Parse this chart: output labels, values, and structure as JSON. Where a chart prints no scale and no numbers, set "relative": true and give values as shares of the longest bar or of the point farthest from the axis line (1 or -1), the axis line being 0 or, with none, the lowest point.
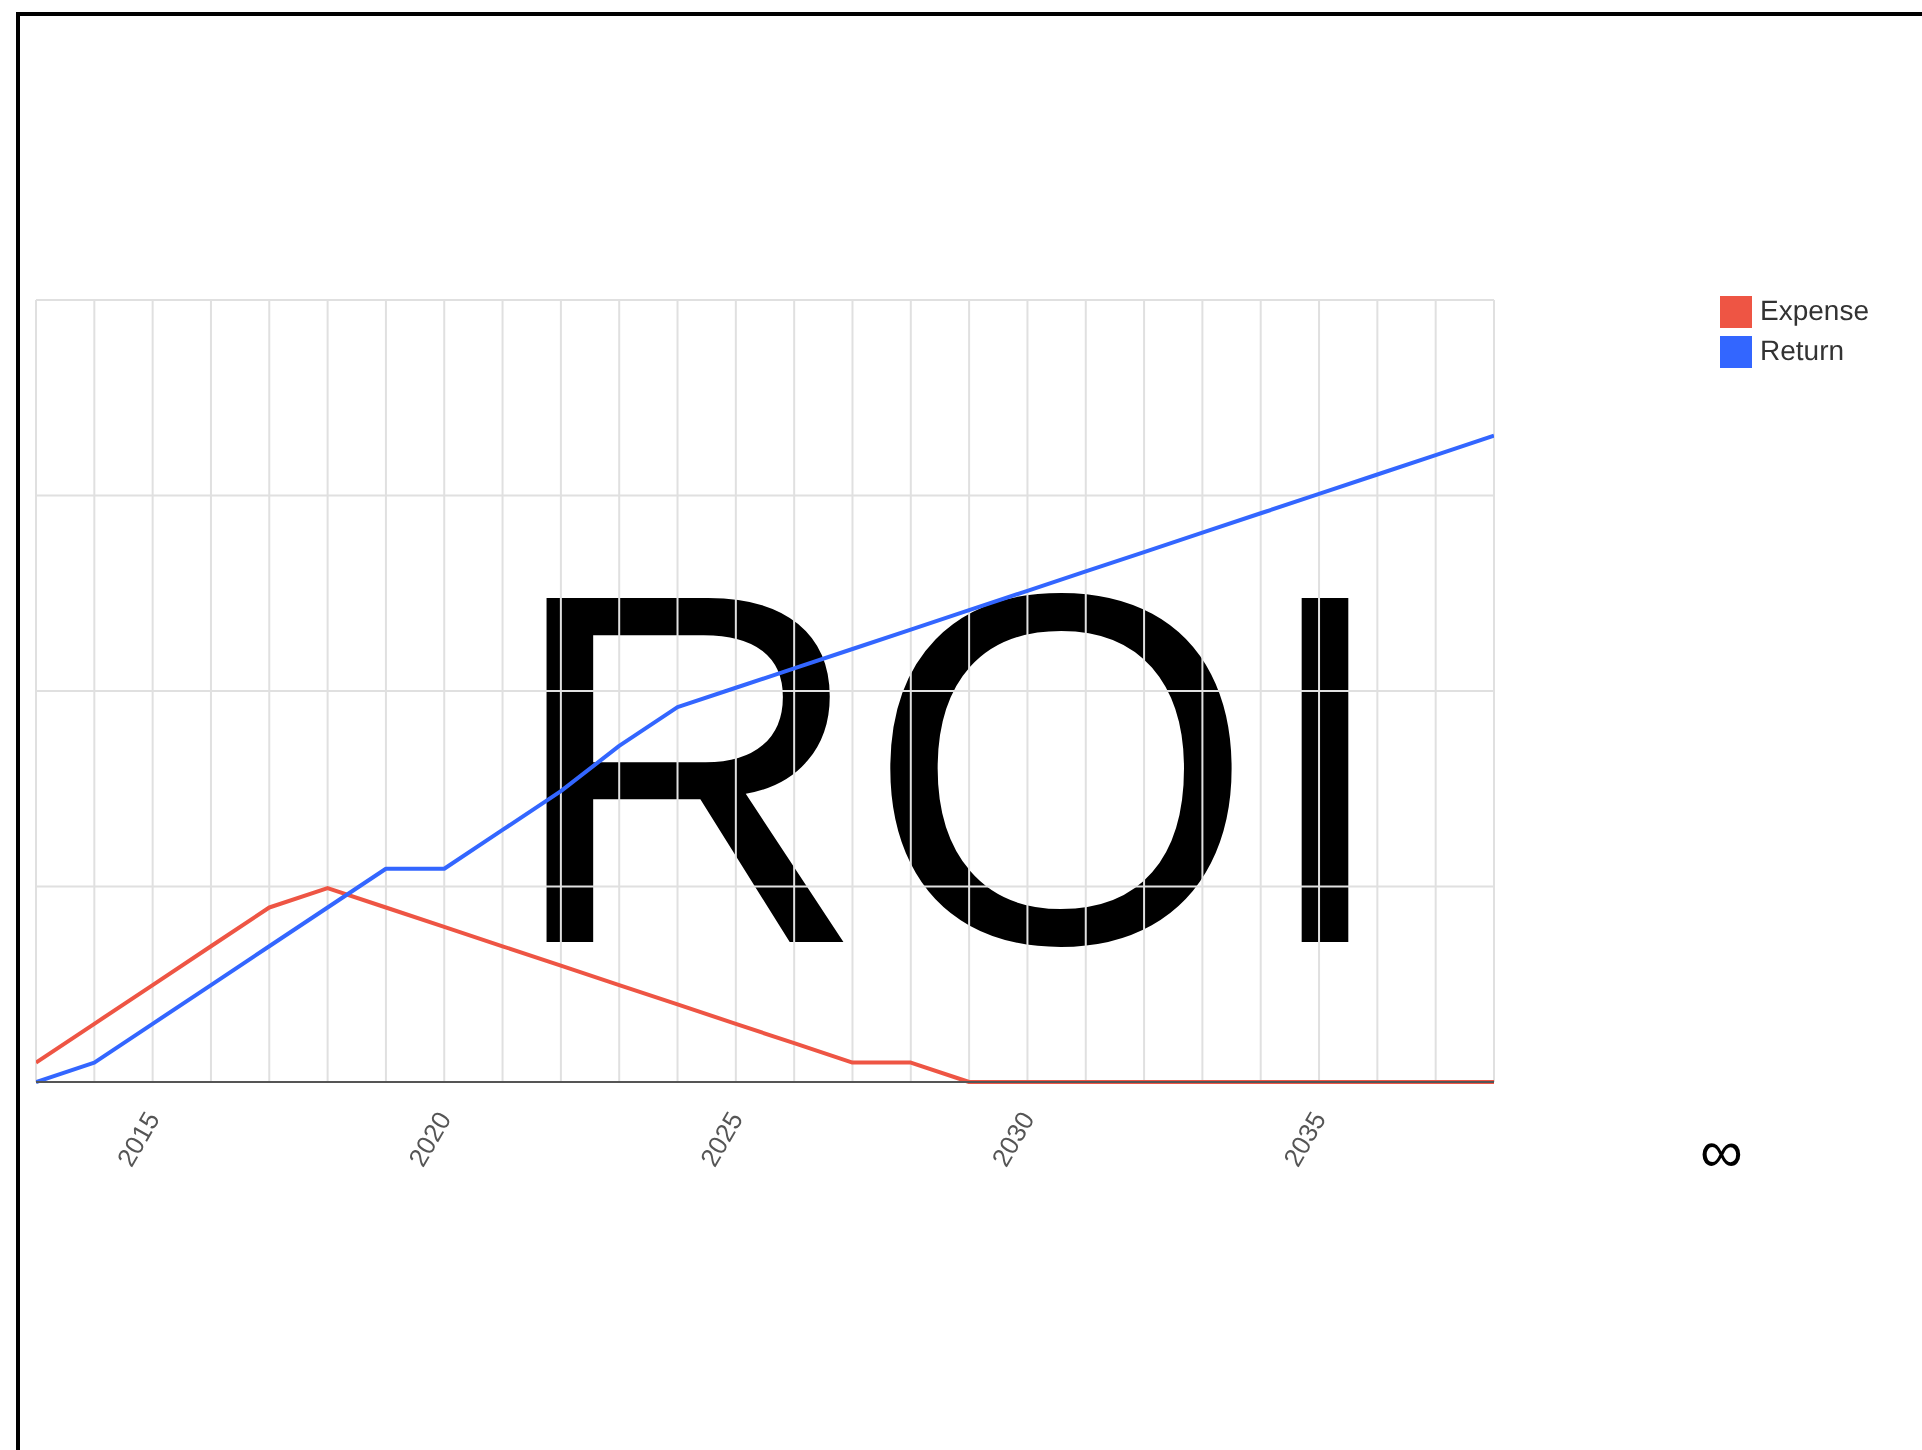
{
  "chart_data": {
    "type": "line",
    "relative": true,
    "annotations": [
      "ROI",
      "∞"
    ],
    "x": [
      2013,
      2014,
      2015,
      2016,
      2017,
      2018,
      2019,
      2020,
      2021,
      2022,
      2023,
      2024,
      2025,
      2026,
      2027,
      2028,
      2029,
      2030,
      2031,
      2032,
      2033,
      2034,
      2035,
      2036,
      2037,
      2038
    ],
    "xlim": [
      2013,
      2038
    ],
    "xticks": [
      2015,
      2020,
      2025,
      2030,
      2035
    ],
    "series": [
      {
        "name": "Expense",
        "color": "#ee5544",
        "values": [
          0.03,
          0.09,
          0.15,
          0.21,
          0.27,
          0.3,
          0.27,
          0.24,
          0.21,
          0.18,
          0.15,
          0.12,
          0.09,
          0.06,
          0.03,
          0.03,
          0,
          0,
          0,
          0,
          0,
          0,
          0,
          0,
          0,
          0
        ]
      },
      {
        "name": "Return",
        "color": "#3366ff",
        "values": [
          0,
          0.03,
          0.09,
          0.15,
          0.21,
          0.27,
          0.33,
          0.33,
          0.39,
          0.45,
          0.52,
          0.58,
          0.61,
          0.64,
          0.67,
          0.7,
          0.73,
          0.76,
          0.79,
          0.82,
          0.85,
          0.88,
          0.91,
          0.94,
          0.97,
          1
        ]
      }
    ],
    "grid": true,
    "legend": "top right",
    "marker": "none",
    "line_style": "solid"
  }
}
